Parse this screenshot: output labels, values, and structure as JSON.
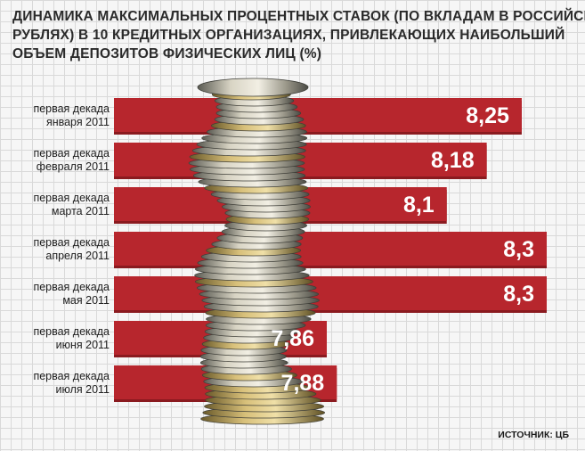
{
  "chart_data": {
    "type": "bar",
    "orientation": "horizontal",
    "title_lines": [
      "ДИНАМИКА МАКСИМАЛЬНЫХ ПРОЦЕНТНЫХ СТАВОК (ПО ВКЛАДАМ В РОССИЙСКИХ",
      "РУБЛЯХ) В 10 КРЕДИТНЫХ ОРГАНИЗАЦИЯХ, ПРИВЛЕКАЮЩИХ НАИБОЛЬШИЙ",
      "ОБЪЕМ ДЕПОЗИТОВ ФИЗИЧЕСКИХ ЛИЦ (%)"
    ],
    "categories": [
      [
        "первая декада",
        "января 2011"
      ],
      [
        "первая декада",
        "февраля 2011"
      ],
      [
        "первая декада",
        "марта 2011"
      ],
      [
        "первая декада",
        "апреля 2011"
      ],
      [
        "первая декада",
        "мая 2011"
      ],
      [
        "первая декада",
        "июня 2011"
      ],
      [
        "первая декада",
        "июля 2011"
      ]
    ],
    "values": [
      8.25,
      8.18,
      8.1,
      8.3,
      8.3,
      7.86,
      7.88
    ],
    "value_labels": [
      "8,25",
      "8,18",
      "8,1",
      "8,3",
      "8,3",
      "7,86",
      "7,88"
    ],
    "source": "ИСТОЧНИК: ЦБ",
    "colors": {
      "bar": "#b7262d",
      "bar_shadow": "#8a1a1f",
      "label": "#ffffff"
    }
  }
}
